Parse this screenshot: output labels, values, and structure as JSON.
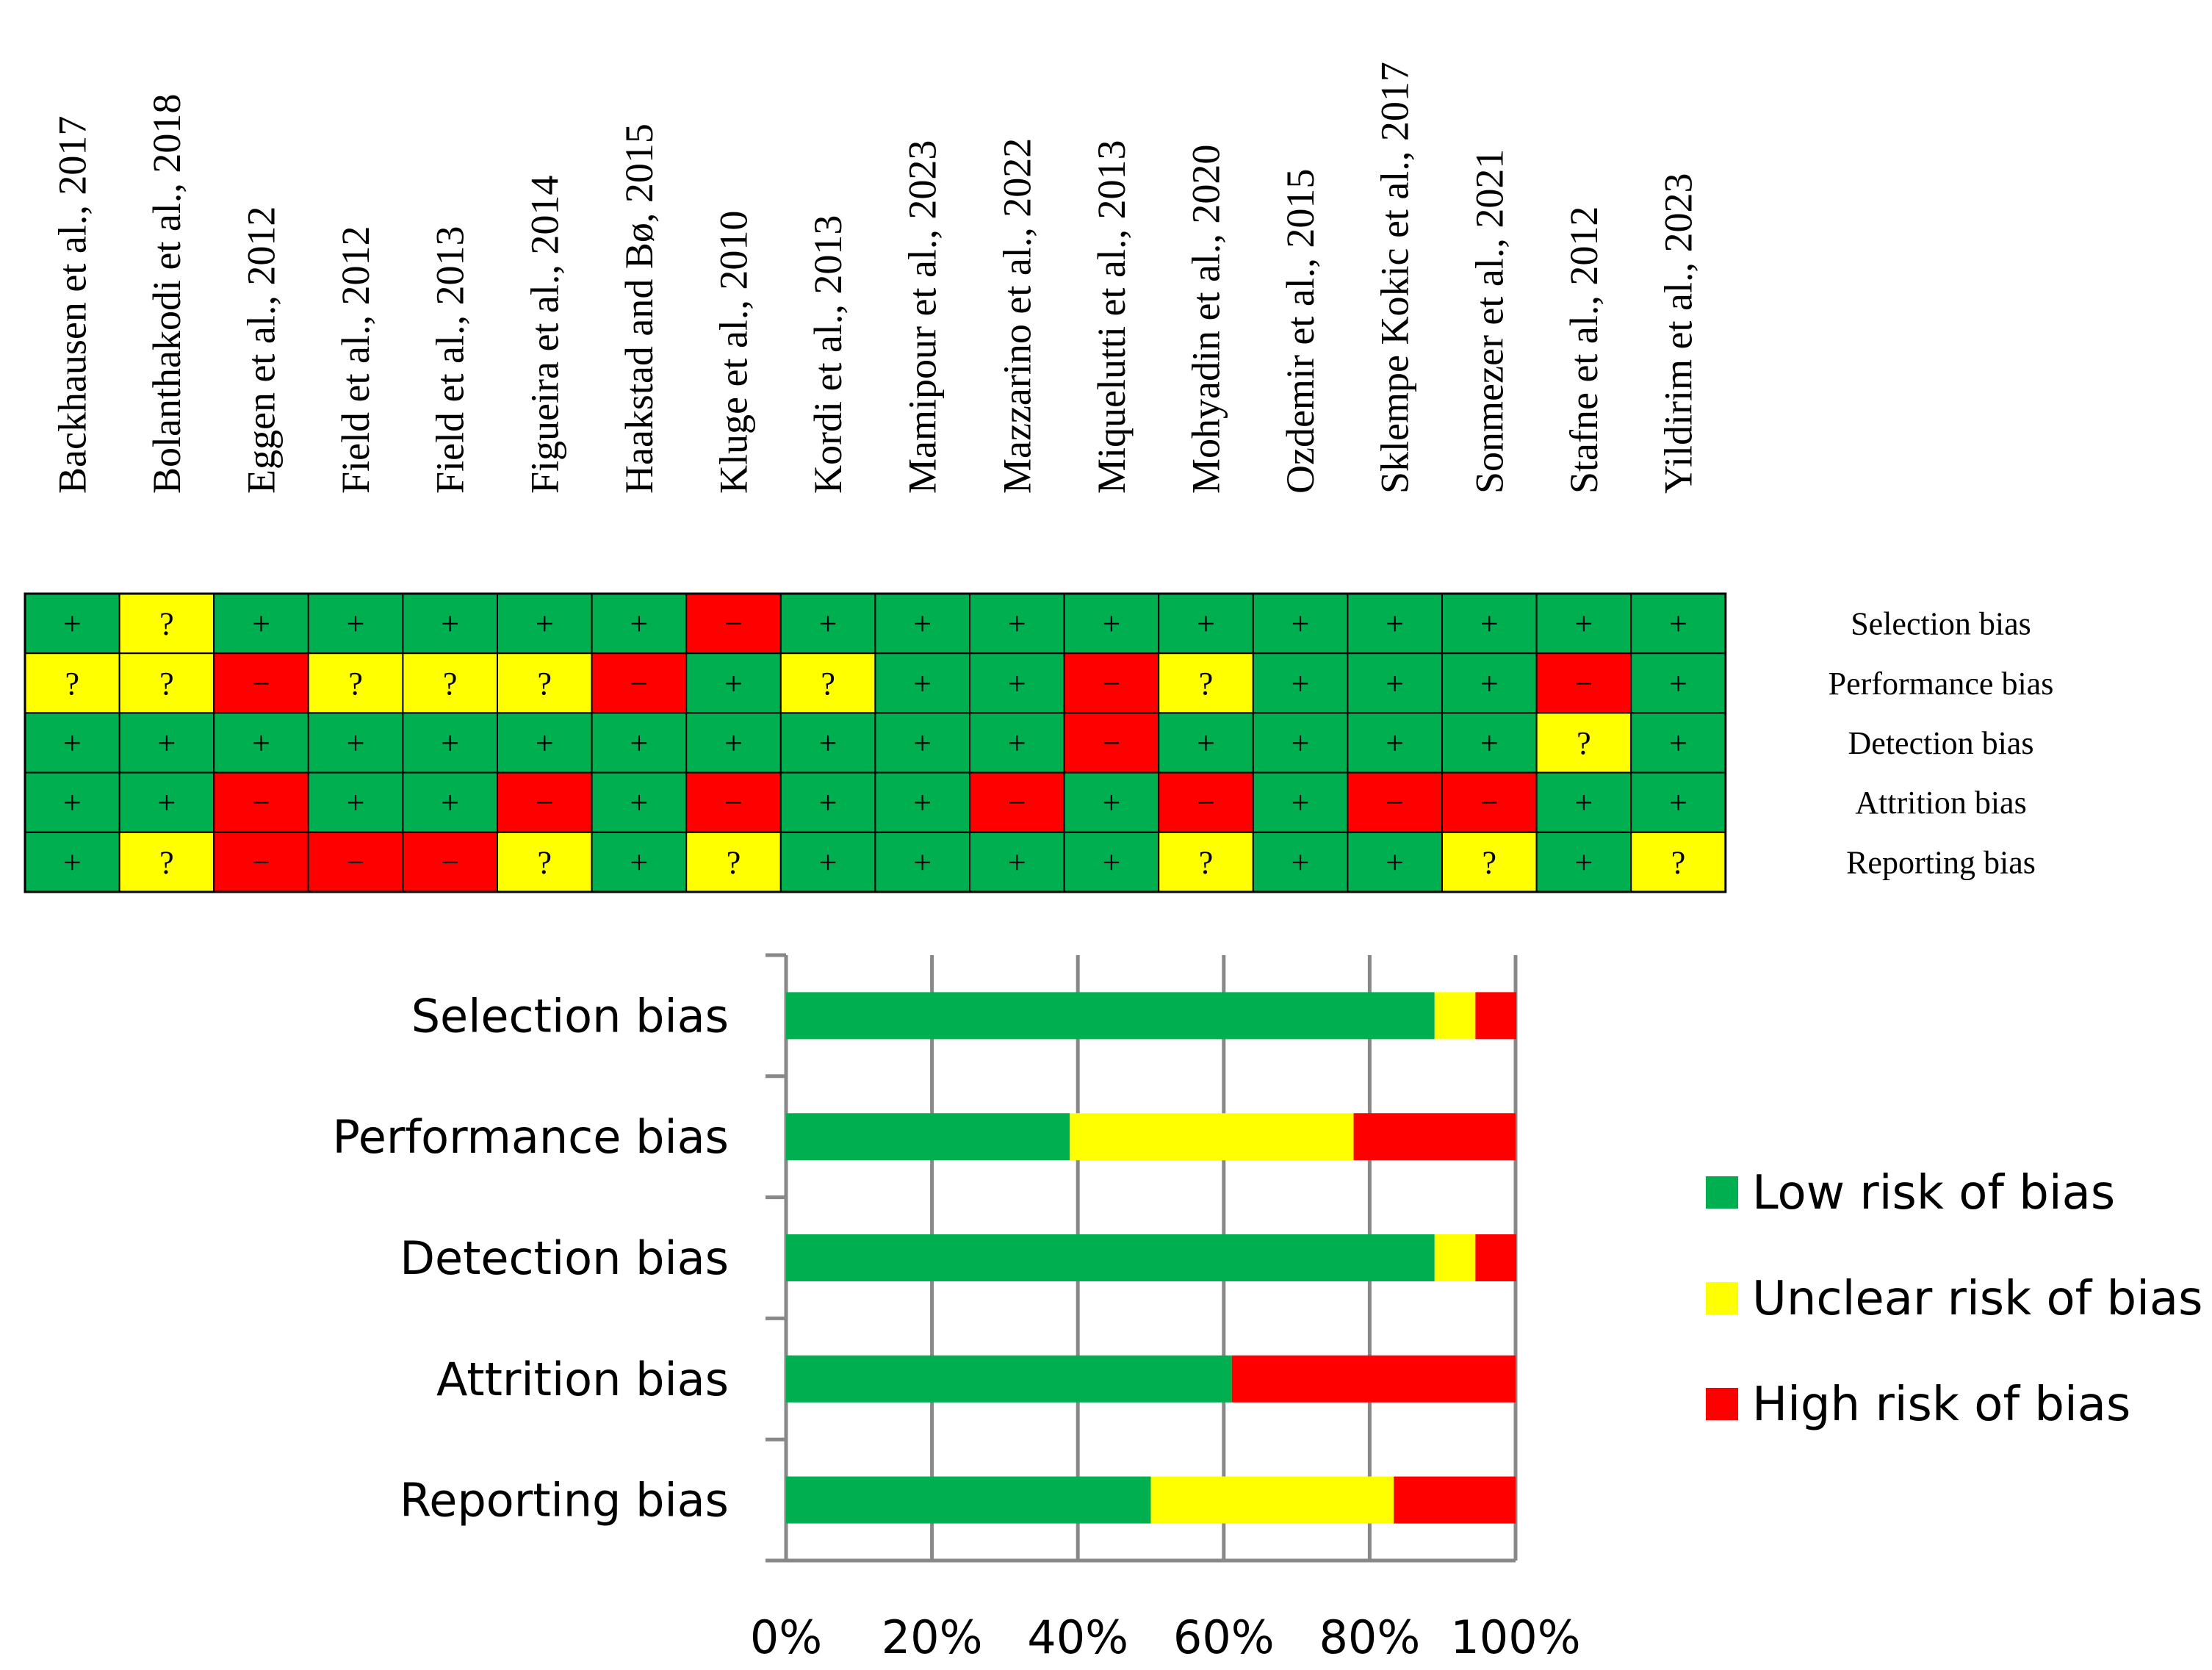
{
  "chart_data": [
    {
      "type": "table",
      "studies": [
        "Backhausen et al., 2017",
        "Bolanthakodi et al., 2018",
        "Eggen et al., 2012",
        "Field et al., 2012",
        "Field et al., 2013",
        "Figueira et al., 2014",
        "Haakstad and Bø, 2015",
        "Kluge et al., 2010",
        "Kordi et al., 2013",
        "Mamipour et al., 2023",
        "Mazzarino et al., 2022",
        "Miquelutti et al., 2013",
        "Mohyadin et al., 2020",
        "Ozdemir et al., 2015",
        "Sklempe Kokic et al., 2017",
        "Sonmezer et al., 2021",
        "Stafne et al., 2012",
        "Yildirim et al., 2023"
      ],
      "domains": [
        "Selection bias",
        "Performance bias",
        "Detection bias",
        "Attrition bias",
        "Reporting bias"
      ],
      "ratings": [
        [
          "+",
          "?",
          "+",
          "+",
          "+",
          "+",
          "+",
          "-",
          "+",
          "+",
          "+",
          "+",
          "+",
          "+",
          "+",
          "+",
          "+",
          "+"
        ],
        [
          "?",
          "?",
          "-",
          "?",
          "?",
          "?",
          "-",
          "+",
          "?",
          "+",
          "+",
          "-",
          "?",
          "+",
          "+",
          "+",
          "-",
          "+"
        ],
        [
          "+",
          "+",
          "+",
          "+",
          "+",
          "+",
          "+",
          "+",
          "+",
          "+",
          "+",
          "-",
          "+",
          "+",
          "+",
          "+",
          "?",
          "+"
        ],
        [
          "+",
          "+",
          "-",
          "+",
          "+",
          "-",
          "+",
          "-",
          "+",
          "+",
          "-",
          "+",
          "-",
          "+",
          "-",
          "-",
          "+",
          "+"
        ],
        [
          "+",
          "?",
          "-",
          "-",
          "-",
          "?",
          "+",
          "?",
          "+",
          "+",
          "+",
          "+",
          "?",
          "+",
          "+",
          "?",
          "+",
          "?"
        ]
      ],
      "symbols": {
        "+": "+",
        "?": "?",
        "-": "−"
      },
      "colors": {
        "+": "#00b050",
        "?": "#ffff00",
        "-": "#ff0000"
      }
    },
    {
      "type": "bar",
      "orientation": "horizontal",
      "stacked": true,
      "categories": [
        "Selection bias",
        "Performance bias",
        "Detection bias",
        "Attrition bias",
        "Reporting bias"
      ],
      "series": [
        {
          "name": "Low risk of bias",
          "color": "#00b050",
          "values": [
            88.9,
            38.9,
            88.9,
            61.1,
            50.0
          ]
        },
        {
          "name": "Unclear risk of bias",
          "color": "#ffff00",
          "values": [
            5.6,
            38.9,
            5.6,
            0,
            33.3
          ]
        },
        {
          "name": "High risk of bias",
          "color": "#ff0000",
          "values": [
            5.6,
            22.2,
            5.6,
            38.9,
            16.7
          ]
        }
      ],
      "xlim": [
        0,
        100
      ],
      "xticks": [
        "0%",
        "20%",
        "40%",
        "60%",
        "80%",
        "100%"
      ],
      "grid": true,
      "legend_position": "right"
    }
  ]
}
